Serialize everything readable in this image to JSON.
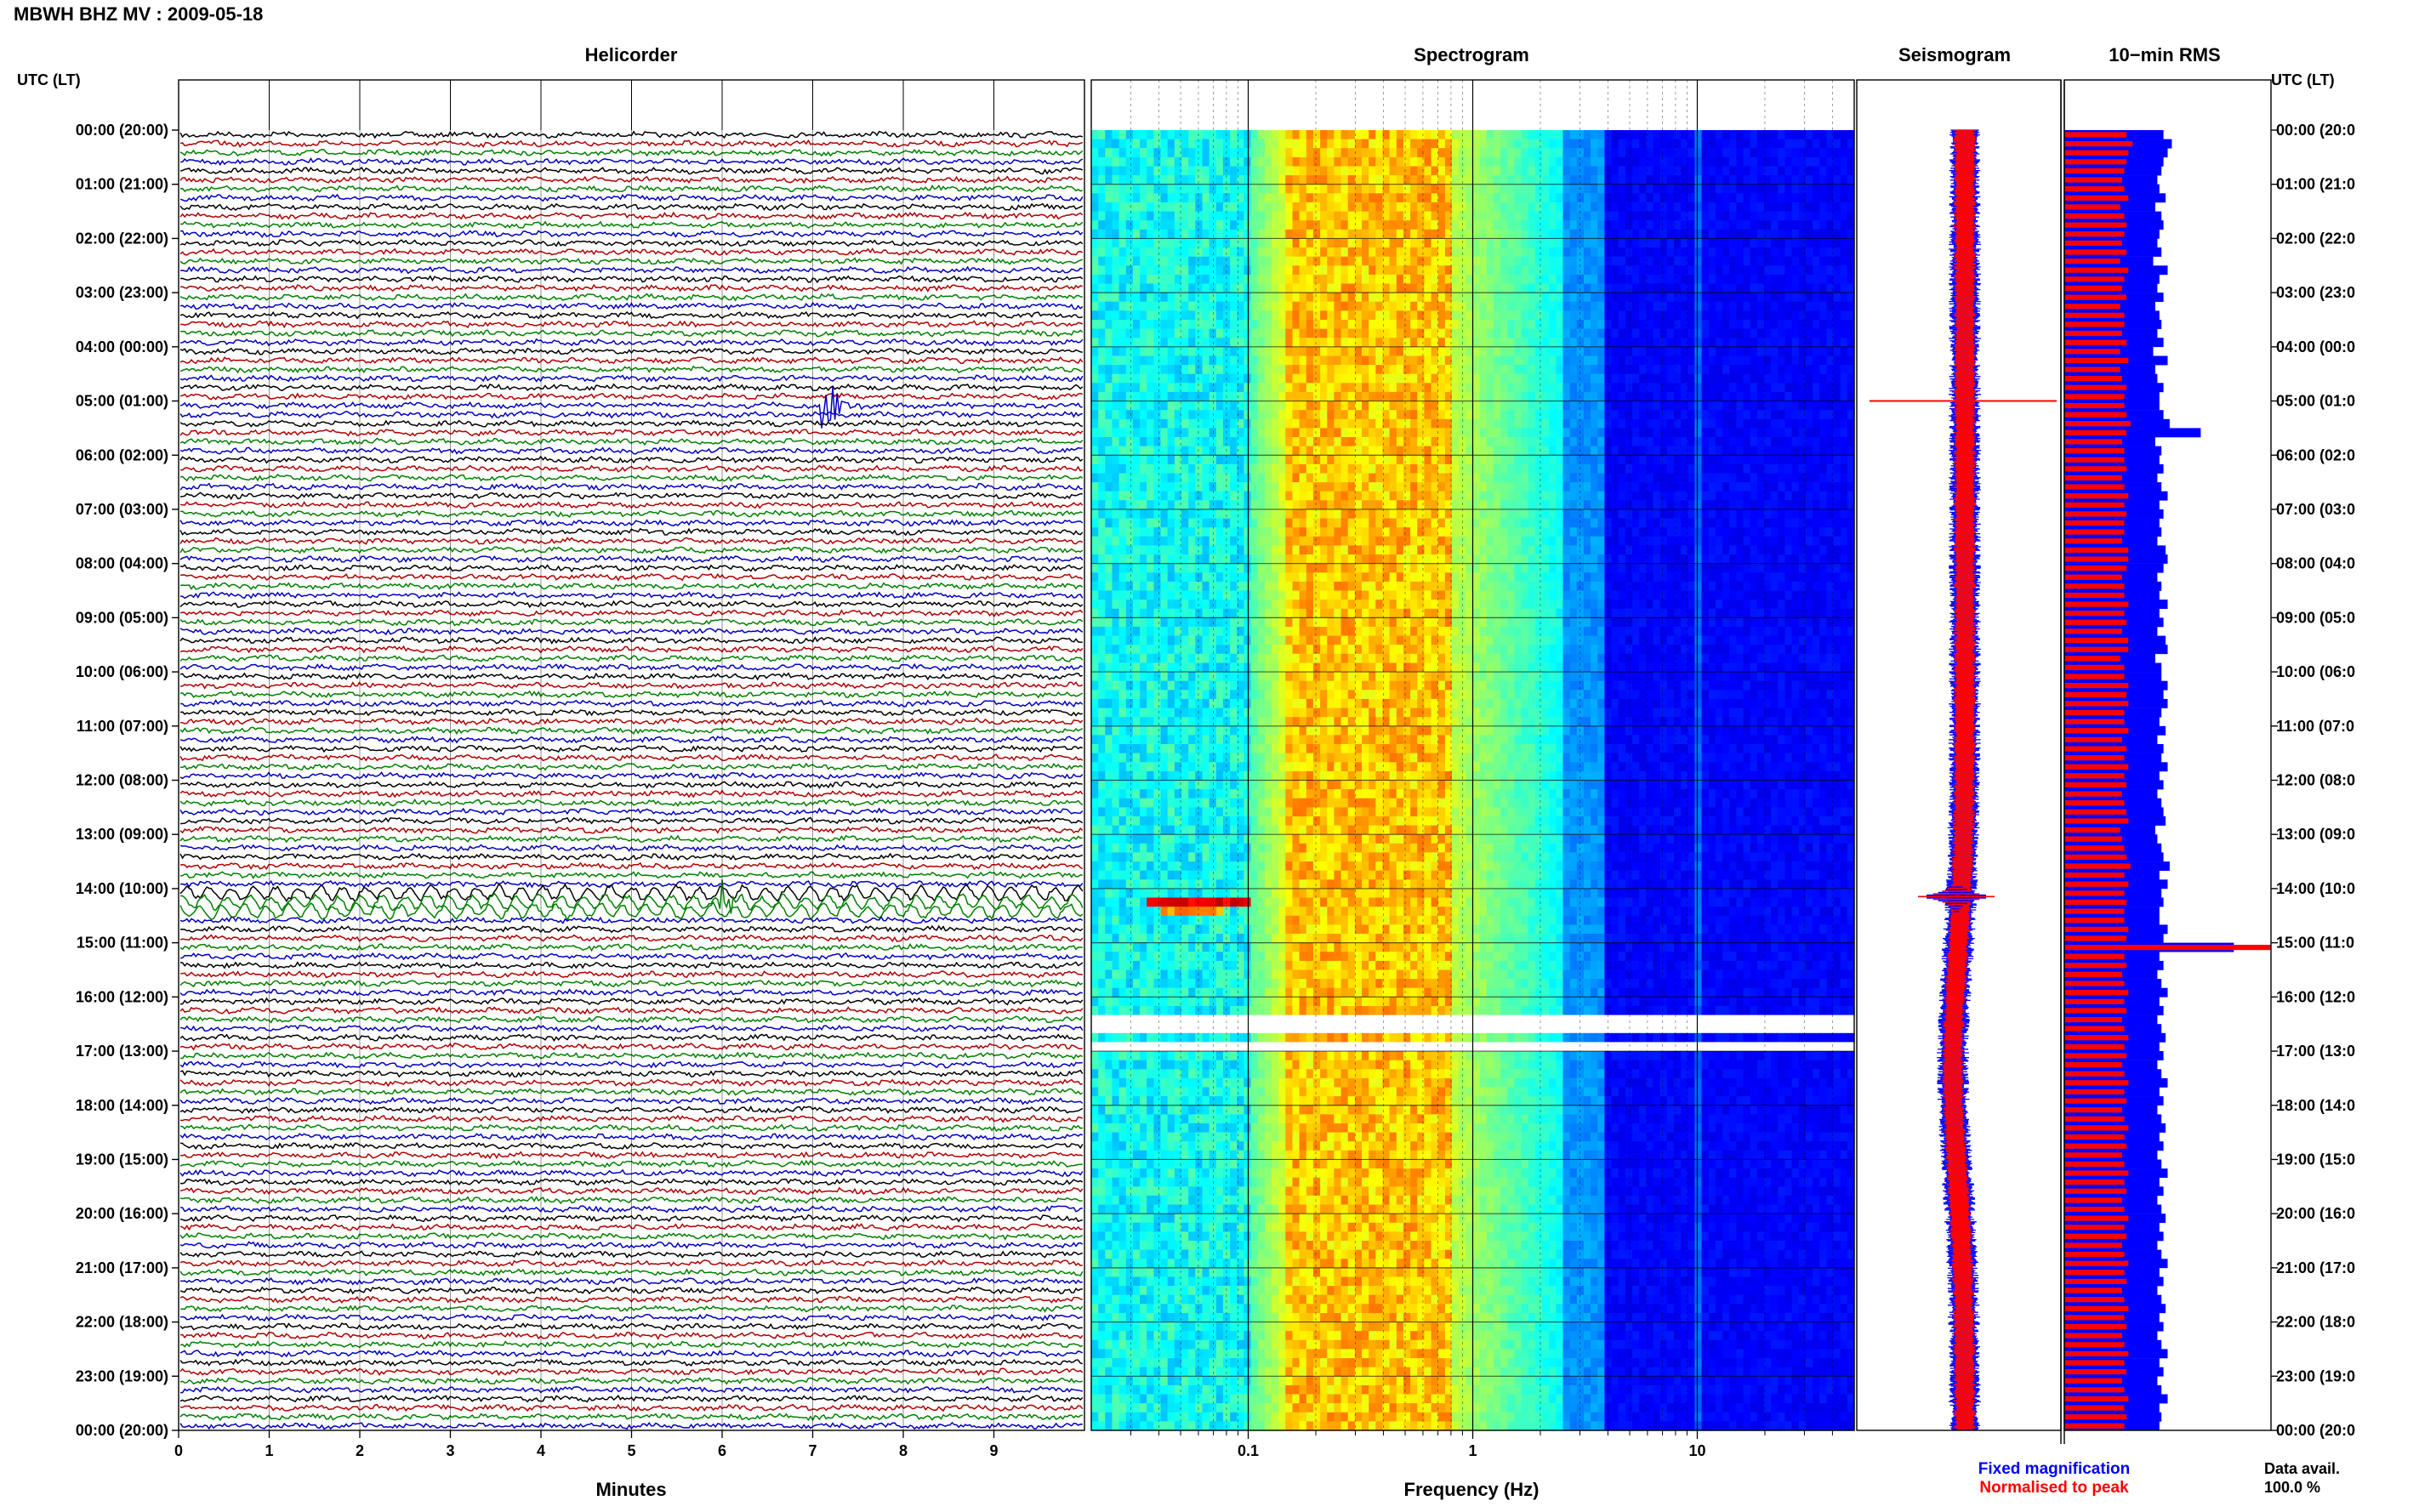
{
  "header": {
    "title": "MBWH BHZ MV : 2009‑05‑18"
  },
  "panels": {
    "helicorder": "Helicorder",
    "spectrogram": "Spectrogram",
    "seismogram": "Seismogram",
    "rms": "10−min RMS"
  },
  "axis_labels": {
    "left_time": "UTC (LT)",
    "right_time": "UTC (LT)",
    "helicorder_x": "Minutes",
    "spectrogram_x": "Frequency (Hz)"
  },
  "time_ticks": [
    "00:00 (20:00)",
    "01:00 (21:00)",
    "02:00 (22:00)",
    "03:00 (23:00)",
    "04:00 (00:00)",
    "05:00 (01:00)",
    "06:00 (02:00)",
    "07:00 (03:00)",
    "08:00 (04:00)",
    "09:00 (05:00)",
    "10:00 (06:00)",
    "11:00 (07:00)",
    "12:00 (08:00)",
    "13:00 (09:00)",
    "14:00 (10:00)",
    "15:00 (11:00)",
    "16:00 (12:00)",
    "17:00 (13:00)",
    "18:00 (14:00)",
    "19:00 (15:00)",
    "20:00 (16:00)",
    "21:00 (17:00)",
    "22:00 (18:00)",
    "23:00 (19:00)",
    "00:00 (20:00)"
  ],
  "right_time_ticks": [
    "00:00 (20:0",
    "01:00 (21:0",
    "02:00 (22:0",
    "03:00 (23:0",
    "04:00 (00:0",
    "05:00 (01:0",
    "06:00 (02:0",
    "07:00 (03:0",
    "08:00 (04:0",
    "09:00 (05:0",
    "10:00 (06:0",
    "11:00 (07:0",
    "12:00 (08:0",
    "13:00 (09:0",
    "14:00 (10:0",
    "15:00 (11:0",
    "16:00 (12:0",
    "17:00 (13:0",
    "18:00 (14:0",
    "19:00 (15:0",
    "20:00 (16:0",
    "21:00 (17:0",
    "22:00 (18:0",
    "23:00 (19:0",
    "00:00 (20:0"
  ],
  "minute_ticks": [
    "0",
    "1",
    "2",
    "3",
    "4",
    "5",
    "6",
    "7",
    "8",
    "9"
  ],
  "freq_ticks": [
    "0.1",
    "1",
    "10"
  ],
  "legend": {
    "fixed": "Fixed magnification",
    "normalised": "Normalised to peak",
    "fixed_color": "#0000ff",
    "normalised_color": "#ff0000"
  },
  "data_avail": {
    "label": "Data avail.",
    "value": "100.0 %"
  },
  "chart_data": {
    "type": "heatmap",
    "title": "MBWH BHZ MV : 2009‑05‑18",
    "helicorder": {
      "xlabel": "Minutes",
      "xlim": [
        0,
        10
      ],
      "rows_per_hour": 6,
      "trace_colors": [
        "#000000",
        "#b00000",
        "#008000",
        "#0000c0"
      ],
      "events": [
        {
          "time_utc": "05:00",
          "minute": 7.15,
          "color": "#0000c0",
          "strength": 4.0
        },
        {
          "time_utc": "14:10",
          "minute": 6.0,
          "color": "#008000",
          "strength": 2.5
        }
      ],
      "long_period_rows_utc": [
        "14:00",
        "14:10",
        "14:20"
      ]
    },
    "spectrogram": {
      "xlabel": "Frequency (Hz)",
      "xscale": "log",
      "xlim": [
        0.02,
        50
      ],
      "colormap": "jet",
      "energy_band_hz": [
        0.15,
        0.8
      ],
      "gaps_utc": [
        "16:20",
        "16:30",
        "16:50"
      ],
      "microseism_event_utc": "14:10"
    },
    "seismogram": {
      "series": [
        {
          "name": "Fixed magnification",
          "color": "#0000ff"
        },
        {
          "name": "Normalised to peak",
          "color": "#ff0000"
        }
      ],
      "spikes_utc": [
        "05:00",
        "14:10"
      ]
    },
    "rms_10min": {
      "blue_rel": [
        0.48,
        0.52,
        0.5,
        0.48,
        0.47,
        0.45,
        0.46,
        0.49,
        0.44,
        0.47,
        0.48,
        0.46,
        0.45,
        0.47,
        0.43,
        0.5,
        0.46,
        0.45,
        0.48,
        0.44,
        0.46,
        0.47,
        0.45,
        0.48,
        0.43,
        0.5,
        0.44,
        0.45,
        0.48,
        0.46,
        0.46,
        0.48,
        0.51,
        0.66,
        0.44,
        0.47,
        0.46,
        0.48,
        0.45,
        0.47,
        0.5,
        0.46,
        0.48,
        0.46,
        0.47,
        0.45,
        0.49,
        0.5,
        0.48,
        0.45,
        0.47,
        0.46,
        0.5,
        0.46,
        0.48,
        0.45,
        0.49,
        0.5,
        0.44,
        0.47,
        0.47,
        0.5,
        0.48,
        0.5,
        0.47,
        0.46,
        0.49,
        0.45,
        0.48,
        0.47,
        0.5,
        0.46,
        0.48,
        0.45,
        0.47,
        0.48,
        0.49,
        0.44,
        0.45,
        0.47,
        0.48,
        0.51,
        0.46,
        0.5,
        0.47,
        0.48,
        0.46,
        0.46,
        0.5,
        0.48,
        0.82,
        0.46,
        0.48,
        0.45,
        0.47,
        0.5,
        0.46,
        0.48,
        0.45,
        0.47,
        0.49,
        0.46,
        0.48,
        0.45,
        0.47,
        0.5,
        0.46,
        0.48,
        0.45,
        0.47,
        0.49,
        0.46,
        0.48,
        0.45,
        0.47,
        0.5,
        0.46,
        0.48,
        0.45,
        0.47,
        0.49,
        0.46,
        0.48,
        0.45,
        0.47,
        0.5,
        0.46,
        0.48,
        0.45,
        0.47,
        0.49,
        0.46,
        0.48,
        0.45,
        0.47,
        0.5,
        0.46,
        0.48,
        0.45,
        0.47,
        0.5,
        0.46,
        0.47,
        0.46
      ],
      "red_rel": [
        0.3,
        0.33,
        0.31,
        0.3,
        0.29,
        0.28,
        0.29,
        0.31,
        0.27,
        0.29,
        0.3,
        0.29,
        0.28,
        0.3,
        0.27,
        0.31,
        0.29,
        0.28,
        0.3,
        0.27,
        0.29,
        0.29,
        0.28,
        0.3,
        0.27,
        0.31,
        0.27,
        0.28,
        0.3,
        0.29,
        0.29,
        0.3,
        0.32,
        0.3,
        0.28,
        0.29,
        0.29,
        0.3,
        0.28,
        0.29,
        0.31,
        0.29,
        0.3,
        0.29,
        0.29,
        0.28,
        0.31,
        0.31,
        0.3,
        0.28,
        0.29,
        0.29,
        0.31,
        0.29,
        0.3,
        0.28,
        0.31,
        0.31,
        0.27,
        0.29,
        0.29,
        0.31,
        0.3,
        0.31,
        0.29,
        0.29,
        0.31,
        0.28,
        0.3,
        0.29,
        0.31,
        0.29,
        0.3,
        0.28,
        0.29,
        0.3,
        0.31,
        0.27,
        0.28,
        0.29,
        0.3,
        0.32,
        0.29,
        0.31,
        0.29,
        0.3,
        0.29,
        0.29,
        0.31,
        0.3,
        1.0,
        0.29,
        0.3,
        0.28,
        0.29,
        0.31,
        0.29,
        0.3,
        0.28,
        0.29,
        0.31,
        0.29,
        0.3,
        0.28,
        0.29,
        0.31,
        0.29,
        0.3,
        0.28,
        0.29,
        0.31,
        0.29,
        0.3,
        0.28,
        0.29,
        0.31,
        0.29,
        0.3,
        0.28,
        0.29,
        0.31,
        0.29,
        0.3,
        0.28,
        0.29,
        0.31,
        0.29,
        0.3,
        0.28,
        0.29,
        0.31,
        0.29,
        0.3,
        0.28,
        0.29,
        0.31,
        0.29,
        0.3,
        0.28,
        0.29,
        0.31,
        0.29,
        0.3,
        0.29
      ]
    }
  }
}
